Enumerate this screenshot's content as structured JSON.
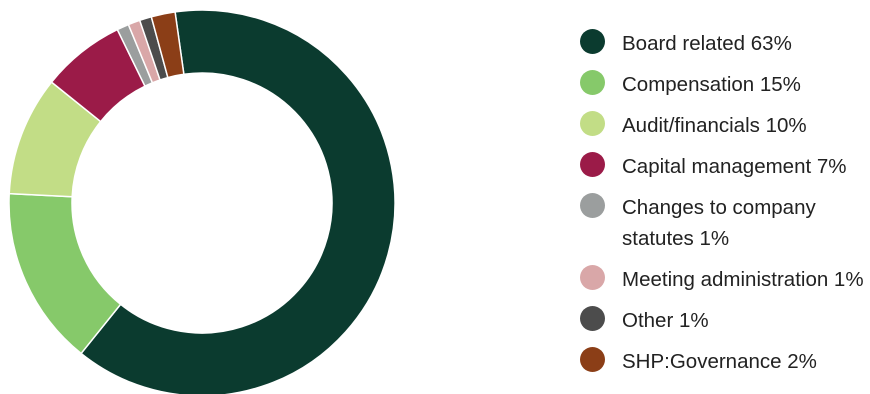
{
  "chart_data": {
    "type": "pie",
    "donut": true,
    "legend_position": "right",
    "slices": [
      {
        "label": "Board related 63%",
        "value": 63,
        "color": "#0b3b2f"
      },
      {
        "label": "Compensation 15%",
        "value": 15,
        "color": "#86c96a"
      },
      {
        "label": "Audit/financials 10%",
        "value": 10,
        "color": "#c2dd86"
      },
      {
        "label": "Capital management 7%",
        "value": 7,
        "color": "#9b1b48"
      },
      {
        "label": "Changes to company statutes 1%",
        "value": 1,
        "color": "#9b9e9e"
      },
      {
        "label": "Meeting administration 1%",
        "value": 1,
        "color": "#d9a7a8"
      },
      {
        "label": "Other 1%",
        "value": 1,
        "color": "#4c4c4c"
      },
      {
        "label": "SHP:Governance 2%",
        "value": 2,
        "color": "#8b3e17"
      }
    ]
  }
}
